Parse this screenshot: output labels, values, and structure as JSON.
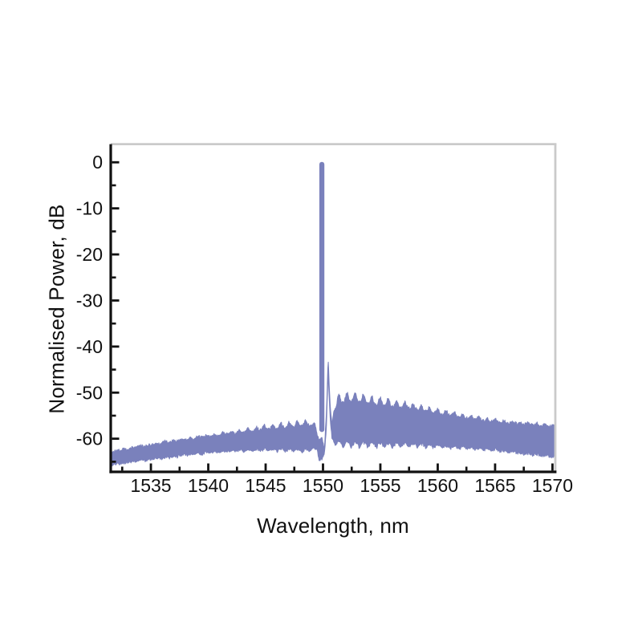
{
  "figure": {
    "background": "#ffffff"
  },
  "chart_data": {
    "type": "line",
    "title": "",
    "xlabel": "Wavelength, nm",
    "ylabel": "Normalised Power, dB",
    "xlim": [
      1531.5,
      1570.25
    ],
    "ylim": [
      -67.2,
      3.7
    ],
    "x_ticks_major": [
      1535,
      1540,
      1545,
      1550,
      1555,
      1560,
      1565,
      1570
    ],
    "x_ticks_minor": [
      1532.5,
      1537.5,
      1542.5,
      1547.5,
      1552.5,
      1557.5,
      1562.5,
      1567.5
    ],
    "y_ticks_major": [
      0,
      -10,
      -20,
      -30,
      -40,
      -50,
      -60
    ],
    "y_ticks_minor": [
      -5,
      -15,
      -25,
      -35,
      -45,
      -55,
      -65
    ],
    "grid": false,
    "legend": false,
    "line_color": "#7a81bc",
    "axis_color": "#111111",
    "border_color": "#cacaca",
    "text_color": "#111111",
    "peak": {
      "center_nm": 1549.9,
      "peak_db": 0,
      "apparent_width_nm": 0.44,
      "base_db": -58,
      "shoulder": {
        "center_nm": 1550.45,
        "db": -43
      },
      "notch": {
        "center_nm": 1550.12,
        "db": -62.5
      }
    },
    "noise_band_envelope": [
      [
        1531.5,
        -63.0,
        -65.7
      ],
      [
        1533.0,
        -62.2,
        -65.0
      ],
      [
        1535.0,
        -61.4,
        -64.4
      ],
      [
        1537.0,
        -60.6,
        -63.8
      ],
      [
        1539.0,
        -59.9,
        -63.2
      ],
      [
        1541.0,
        -59.2,
        -62.7
      ],
      [
        1543.0,
        -58.6,
        -62.4
      ],
      [
        1545.0,
        -58.0,
        -62.2
      ],
      [
        1547.0,
        -57.5,
        -62.2
      ],
      [
        1548.5,
        -57.1,
        -62.3
      ],
      [
        1549.3,
        -57.3,
        -62.0
      ],
      [
        1549.5,
        -59.0,
        -62.5
      ],
      [
        1549.65,
        -60.3,
        -64.6
      ],
      [
        1549.9,
        -59.8,
        -64.3
      ],
      [
        1550.0,
        -60.8,
        -63.6
      ],
      [
        1550.12,
        -62.2,
        -63.4
      ],
      [
        1550.28,
        -55.5,
        -58.5
      ],
      [
        1550.45,
        -42.8,
        -45.6
      ],
      [
        1550.62,
        -52.5,
        -55.5
      ],
      [
        1550.78,
        -56.8,
        -59.8
      ],
      [
        1550.95,
        -53.8,
        -60.4
      ],
      [
        1551.5,
        -52.2,
        -60.7
      ],
      [
        1552.5,
        -51.8,
        -60.8
      ],
      [
        1554.0,
        -52.4,
        -60.9
      ],
      [
        1556.0,
        -53.0,
        -61.0
      ],
      [
        1558.0,
        -53.6,
        -61.1
      ],
      [
        1560.0,
        -54.6,
        -61.4
      ],
      [
        1562.0,
        -55.4,
        -61.7
      ],
      [
        1564.0,
        -56.1,
        -62.1
      ],
      [
        1566.0,
        -56.6,
        -62.6
      ],
      [
        1568.0,
        -57.0,
        -63.2
      ],
      [
        1570.3,
        -57.4,
        -63.8
      ]
    ],
    "ripple": {
      "period_nm": 0.72,
      "phase_nm": 1549.75,
      "lower_factor": 0.55,
      "amplitude_points": [
        [
          1531.5,
          0.15
        ],
        [
          1540.0,
          0.35
        ],
        [
          1543.0,
          0.6
        ],
        [
          1546.0,
          1.0
        ],
        [
          1548.8,
          1.25
        ],
        [
          1549.4,
          0.3
        ],
        [
          1549.6,
          0.0
        ],
        [
          1550.8,
          0.0
        ],
        [
          1551.2,
          2.1
        ],
        [
          1552.5,
          1.9
        ],
        [
          1555.0,
          1.7
        ],
        [
          1557.0,
          1.3
        ],
        [
          1560.0,
          1.0
        ],
        [
          1563.0,
          0.7
        ],
        [
          1566.0,
          0.5
        ],
        [
          1570.3,
          0.4
        ]
      ]
    },
    "noise": {
      "seed": 7,
      "amp_db": 0.45,
      "step_nm": 0.04
    }
  }
}
